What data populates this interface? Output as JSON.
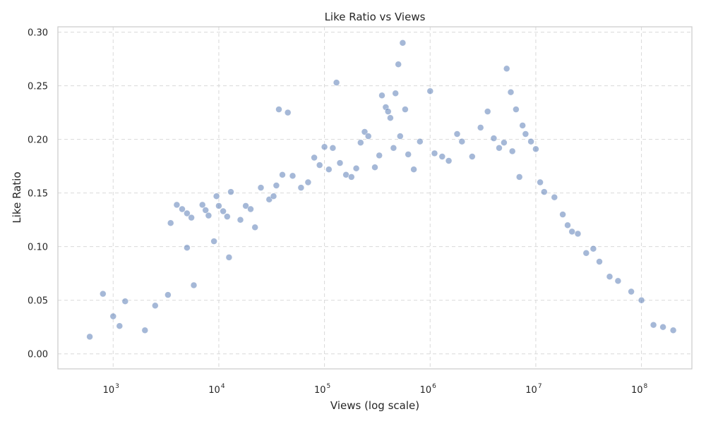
{
  "chart_data": {
    "type": "scatter",
    "title": "Like Ratio vs Views",
    "xlabel": "Views (log scale)",
    "ylabel": "Like Ratio",
    "xscale": "log",
    "xlim": [
      300,
      300000000
    ],
    "ylim": [
      -0.014,
      0.305
    ],
    "x_ticks": [
      {
        "value": 1000,
        "base": "10",
        "exp": "3"
      },
      {
        "value": 10000,
        "base": "10",
        "exp": "4"
      },
      {
        "value": 100000,
        "base": "10",
        "exp": "5"
      },
      {
        "value": 1000000,
        "base": "10",
        "exp": "6"
      },
      {
        "value": 10000000,
        "base": "10",
        "exp": "7"
      },
      {
        "value": 100000000,
        "base": "10",
        "exp": "8"
      }
    ],
    "y_ticks": [
      {
        "value": 0.0,
        "label": "0.00"
      },
      {
        "value": 0.05,
        "label": "0.05"
      },
      {
        "value": 0.1,
        "label": "0.10"
      },
      {
        "value": 0.15,
        "label": "0.15"
      },
      {
        "value": 0.2,
        "label": "0.20"
      },
      {
        "value": 0.25,
        "label": "0.25"
      },
      {
        "value": 0.3,
        "label": "0.30"
      }
    ],
    "grid": true,
    "grid_style": "dashed",
    "point_color": "#4c72b0",
    "point_edge_color": "#ffffff",
    "point_opacity": 0.5,
    "points": [
      [
        600,
        0.016
      ],
      [
        800,
        0.056
      ],
      [
        1000,
        0.035
      ],
      [
        1150,
        0.026
      ],
      [
        1300,
        0.049
      ],
      [
        2000,
        0.022
      ],
      [
        2500,
        0.045
      ],
      [
        3300,
        0.055
      ],
      [
        3500,
        0.122
      ],
      [
        4000,
        0.139
      ],
      [
        4500,
        0.135
      ],
      [
        5000,
        0.131
      ],
      [
        5500,
        0.127
      ],
      [
        5000,
        0.099
      ],
      [
        5800,
        0.064
      ],
      [
        7000,
        0.139
      ],
      [
        7500,
        0.134
      ],
      [
        8000,
        0.129
      ],
      [
        9000,
        0.105
      ],
      [
        9500,
        0.147
      ],
      [
        10000,
        0.138
      ],
      [
        11000,
        0.133
      ],
      [
        12000,
        0.128
      ],
      [
        12500,
        0.09
      ],
      [
        13000,
        0.151
      ],
      [
        16000,
        0.125
      ],
      [
        18000,
        0.138
      ],
      [
        20000,
        0.135
      ],
      [
        22000,
        0.118
      ],
      [
        25000,
        0.155
      ],
      [
        30000,
        0.144
      ],
      [
        33000,
        0.147
      ],
      [
        35000,
        0.157
      ],
      [
        37000,
        0.228
      ],
      [
        40000,
        0.167
      ],
      [
        45000,
        0.225
      ],
      [
        50000,
        0.166
      ],
      [
        60000,
        0.155
      ],
      [
        70000,
        0.16
      ],
      [
        80000,
        0.183
      ],
      [
        90000,
        0.176
      ],
      [
        100000,
        0.193
      ],
      [
        110000,
        0.172
      ],
      [
        120000,
        0.192
      ],
      [
        130000,
        0.253
      ],
      [
        140000,
        0.178
      ],
      [
        160000,
        0.167
      ],
      [
        180000,
        0.165
      ],
      [
        200000,
        0.173
      ],
      [
        220000,
        0.197
      ],
      [
        240000,
        0.207
      ],
      [
        260000,
        0.203
      ],
      [
        300000,
        0.174
      ],
      [
        330000,
        0.185
      ],
      [
        350000,
        0.241
      ],
      [
        380000,
        0.23
      ],
      [
        400000,
        0.226
      ],
      [
        420000,
        0.22
      ],
      [
        450000,
        0.192
      ],
      [
        470000,
        0.243
      ],
      [
        500000,
        0.27
      ],
      [
        520000,
        0.203
      ],
      [
        550000,
        0.29
      ],
      [
        580000,
        0.228
      ],
      [
        620000,
        0.186
      ],
      [
        700000,
        0.172
      ],
      [
        800000,
        0.198
      ],
      [
        1000000,
        0.245
      ],
      [
        1100000,
        0.187
      ],
      [
        1300000,
        0.184
      ],
      [
        1500000,
        0.18
      ],
      [
        1800000,
        0.205
      ],
      [
        2000000,
        0.198
      ],
      [
        2500000,
        0.184
      ],
      [
        3000000,
        0.211
      ],
      [
        3500000,
        0.226
      ],
      [
        4000000,
        0.201
      ],
      [
        4500000,
        0.192
      ],
      [
        5000000,
        0.197
      ],
      [
        5300000,
        0.266
      ],
      [
        5800000,
        0.244
      ],
      [
        6000000,
        0.189
      ],
      [
        6500000,
        0.228
      ],
      [
        7000000,
        0.165
      ],
      [
        7500000,
        0.213
      ],
      [
        8000000,
        0.205
      ],
      [
        9000000,
        0.198
      ],
      [
        10000000,
        0.191
      ],
      [
        11000000,
        0.16
      ],
      [
        12000000,
        0.151
      ],
      [
        15000000,
        0.146
      ],
      [
        18000000,
        0.13
      ],
      [
        20000000,
        0.12
      ],
      [
        22000000,
        0.114
      ],
      [
        25000000,
        0.112
      ],
      [
        30000000,
        0.094
      ],
      [
        35000000,
        0.098
      ],
      [
        40000000,
        0.086
      ],
      [
        50000000,
        0.072
      ],
      [
        60000000,
        0.068
      ],
      [
        80000000,
        0.058
      ],
      [
        100000000,
        0.05
      ],
      [
        130000000,
        0.027
      ],
      [
        160000000,
        0.025
      ],
      [
        200000000,
        0.022
      ]
    ]
  }
}
